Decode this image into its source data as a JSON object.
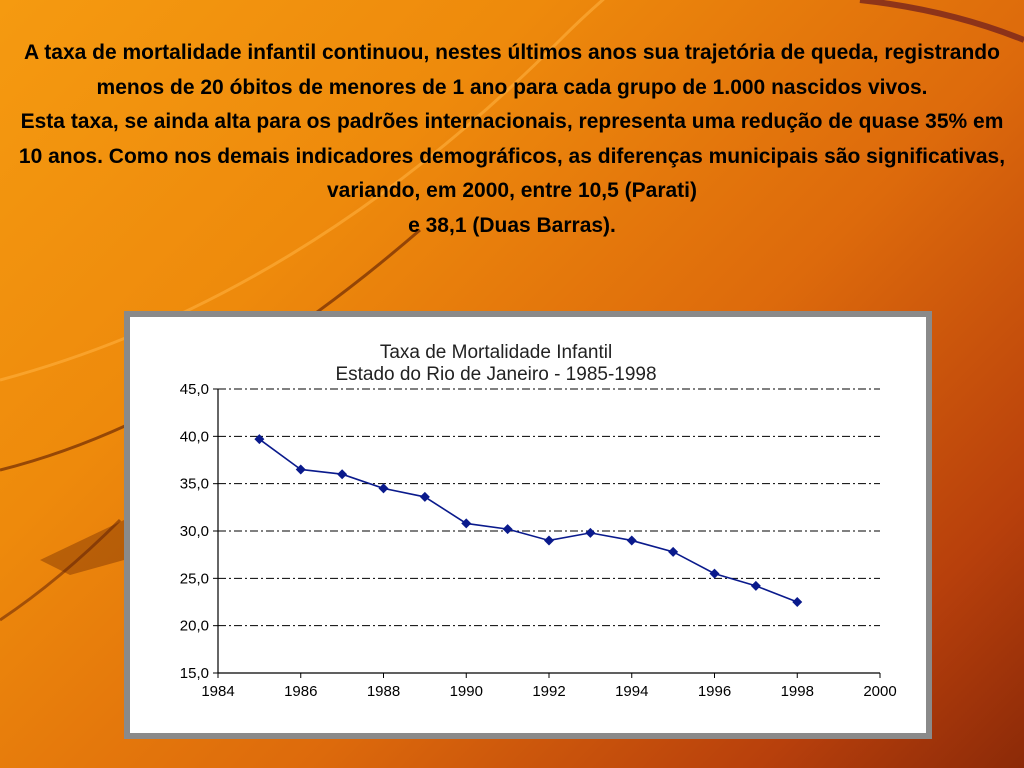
{
  "slide": {
    "paragraph1": "A taxa de mortalidade infantil continuou, nestes últimos anos sua trajetória de queda, registrando menos de 20 óbitos de menores de 1 ano para cada grupo de 1.000 nascidos vivos.",
    "paragraph2": "Esta taxa, se ainda alta para os padrões internacionais, representa uma redução de quase 35% em 10 anos. Como nos demais indicadores demográficos, as diferenças municipais são significativas, variando, em 2000, entre 10,5 (Parati)",
    "paragraph3": "e 38,1 (Duas Barras)."
  },
  "colors": {
    "series": "#0a1a8c",
    "gridline": "#000000",
    "frame": "#8a8a8a"
  },
  "chart_data": {
    "type": "line",
    "title": "Taxa de Mortalidade Infantil",
    "subtitle": "Estado do Rio de Janeiro - 1985-1998",
    "xlabel": "",
    "ylabel": "",
    "xlim": [
      1984,
      2000
    ],
    "ylim": [
      15,
      45
    ],
    "x_ticks": [
      "1984",
      "1986",
      "1988",
      "1990",
      "1992",
      "1994",
      "1996",
      "1998",
      "2000"
    ],
    "y_ticks": [
      "15,0",
      "20,0",
      "25,0",
      "30,0",
      "35,0",
      "40,0",
      "45,0"
    ],
    "grid": true,
    "legend": "none",
    "series": [
      {
        "name": "Taxa de Mortalidade Infantil",
        "x": [
          1985,
          1986,
          1987,
          1988,
          1989,
          1990,
          1991,
          1992,
          1993,
          1994,
          1995,
          1996,
          1997,
          1998
        ],
        "values": [
          39.7,
          36.5,
          36.0,
          34.5,
          33.6,
          30.8,
          30.2,
          29.0,
          29.8,
          29.0,
          27.8,
          25.5,
          24.2,
          22.5
        ]
      }
    ]
  }
}
